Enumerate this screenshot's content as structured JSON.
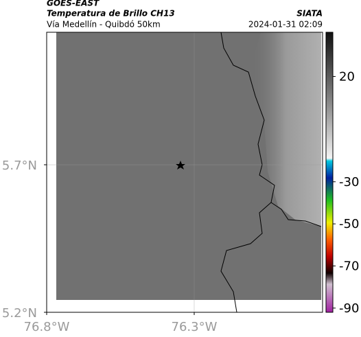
{
  "header": {
    "source": "GOES-EAST",
    "product": "Temperatura de Brillo CH13",
    "region": "Vía Medellín - Quibdó 50km",
    "agency": "SIATA",
    "timestamp": "2024-01-31 02:09"
  },
  "map": {
    "xlim": [
      -76.8,
      -75.865
    ],
    "ylim": [
      5.2,
      6.149
    ],
    "xticks": [
      {
        "value": -76.8,
        "label": "76.8°W"
      },
      {
        "value": -76.3,
        "label": "76.3°W"
      }
    ],
    "yticks": [
      {
        "value": 5.7,
        "label": "5.7°N"
      },
      {
        "value": 5.2,
        "label": "5.2°N"
      }
    ]
  },
  "colorbar": {
    "lim": [
      -92,
      41
    ],
    "ticks": [
      20,
      -30,
      -50,
      -70,
      -90
    ]
  }
}
